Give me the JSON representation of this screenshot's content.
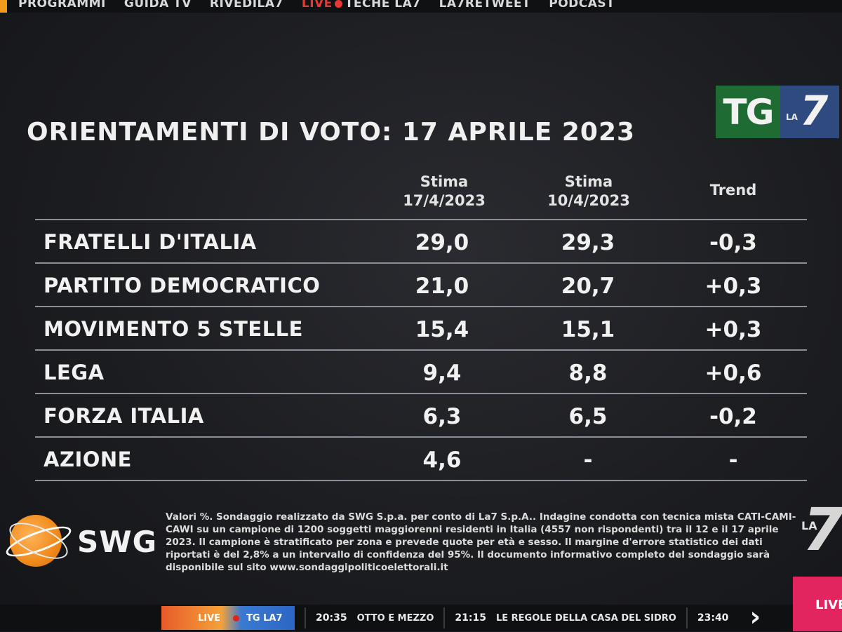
{
  "nav": {
    "items": [
      "PROGRAMMI",
      "GUIDA TV",
      "RIVEDILA7",
      "LIVE",
      "TECHE LA7",
      "LA7RETWEET",
      "PODCAST"
    ]
  },
  "logo": {
    "tg": "TG",
    "la": "LA",
    "seven": "7"
  },
  "title": "ORIENTAMENTI DI VOTO: 17 APRILE 2023",
  "table": {
    "headers": [
      {
        "line1": "Stima",
        "line2": "17/4/2023"
      },
      {
        "line1": "Stima",
        "line2": "10/4/2023"
      },
      {
        "line1": "Trend",
        "line2": ""
      }
    ],
    "rows": [
      {
        "party": "FRATELLI D'ITALIA",
        "v1": "29,0",
        "v2": "29,3",
        "trend": "-0,3"
      },
      {
        "party": "PARTITO DEMOCRATICO",
        "v1": "21,0",
        "v2": "20,7",
        "trend": "+0,3"
      },
      {
        "party": "MOVIMENTO 5 STELLE",
        "v1": "15,4",
        "v2": "15,1",
        "trend": "+0,3"
      },
      {
        "party": "LEGA",
        "v1": "9,4",
        "v2": "8,8",
        "trend": "+0,6"
      },
      {
        "party": "FORZA ITALIA",
        "v1": "6,3",
        "v2": "6,5",
        "trend": "-0,2"
      },
      {
        "party": "AZIONE",
        "v1": "4,6",
        "v2": "-",
        "trend": "-"
      }
    ]
  },
  "footer": {
    "swg": "SWG",
    "note": "Valori %. Sondaggio realizzato da SWG S.p.a. per conto di La7 S.p.A.. Indagine condotta con tecnica mista CATI-CAMI-CAWI su un campione di 1200 soggetti maggiorenni residenti in Italia (4557 non rispondenti) tra il 12 e il 17 aprile 2023. Il campione è stratificato per zona e prevede quote per età e sesso. Il margine d'errore statistico dei dati riportati è del 2,8% a un intervallo di confidenza del 95%. Il documento informativo completo del sondaggio sarà disponibile sul sito www.sondaggipoliticoelettorali.it"
  },
  "bottombar": {
    "live_label": "LIVE",
    "channel": "TG LA7",
    "schedule": [
      {
        "time": "20:35",
        "program": "OTTO E MEZZO"
      },
      {
        "time": "21:15",
        "program": "LE REGOLE DELLA CASA DEL SIDRO"
      },
      {
        "time": "23:40",
        "program": ""
      }
    ],
    "corner_live": "LIVE"
  },
  "colors": {
    "accent_live": "#e53a2f",
    "tg_green": "#1f6b34",
    "la7_blue": "#2f4a7e",
    "swg_orange": "#f08a1a"
  }
}
